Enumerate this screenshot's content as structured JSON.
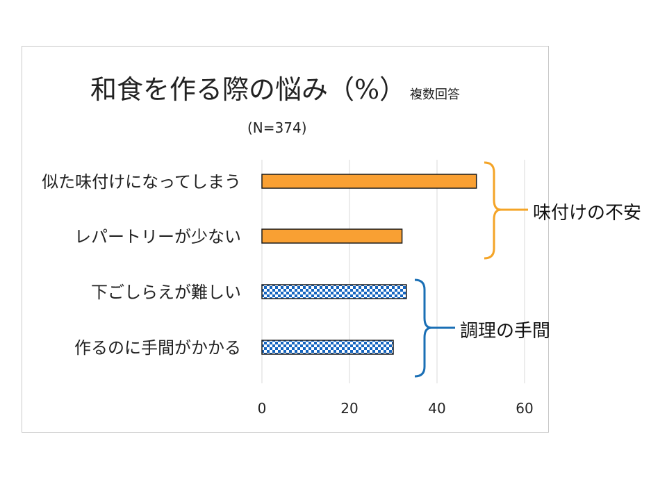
{
  "chart_data": {
    "type": "bar",
    "orientation": "horizontal",
    "title": "和食を作る際の悩み（%）",
    "title_note": "複数回答",
    "subtitle": "(N=374)",
    "categories": [
      "似た味付けになってしまう",
      "レパートリーが少ない",
      "下ごしらえが難しい",
      "作るのに手間がかかる"
    ],
    "values": [
      49,
      32,
      33,
      30
    ],
    "bar_styles": [
      "solid-orange",
      "solid-orange",
      "checker-blue",
      "checker-blue"
    ],
    "xlim": [
      0,
      60
    ],
    "x_ticks": [
      "0",
      "20",
      "40",
      "60"
    ],
    "grid": "vertical",
    "xlabel": "",
    "ylabel": "",
    "groups": [
      {
        "label": "味付けの不安",
        "members": [
          0,
          1
        ],
        "color": "#F4A427"
      },
      {
        "label": "調理の手間",
        "members": [
          2,
          3
        ],
        "color": "#1A6FB5"
      }
    ]
  },
  "colors": {
    "orange": "#F9A033",
    "blue": "#1565C0",
    "bracket_orange": "#F4A427",
    "bracket_blue": "#1A6FB5"
  }
}
